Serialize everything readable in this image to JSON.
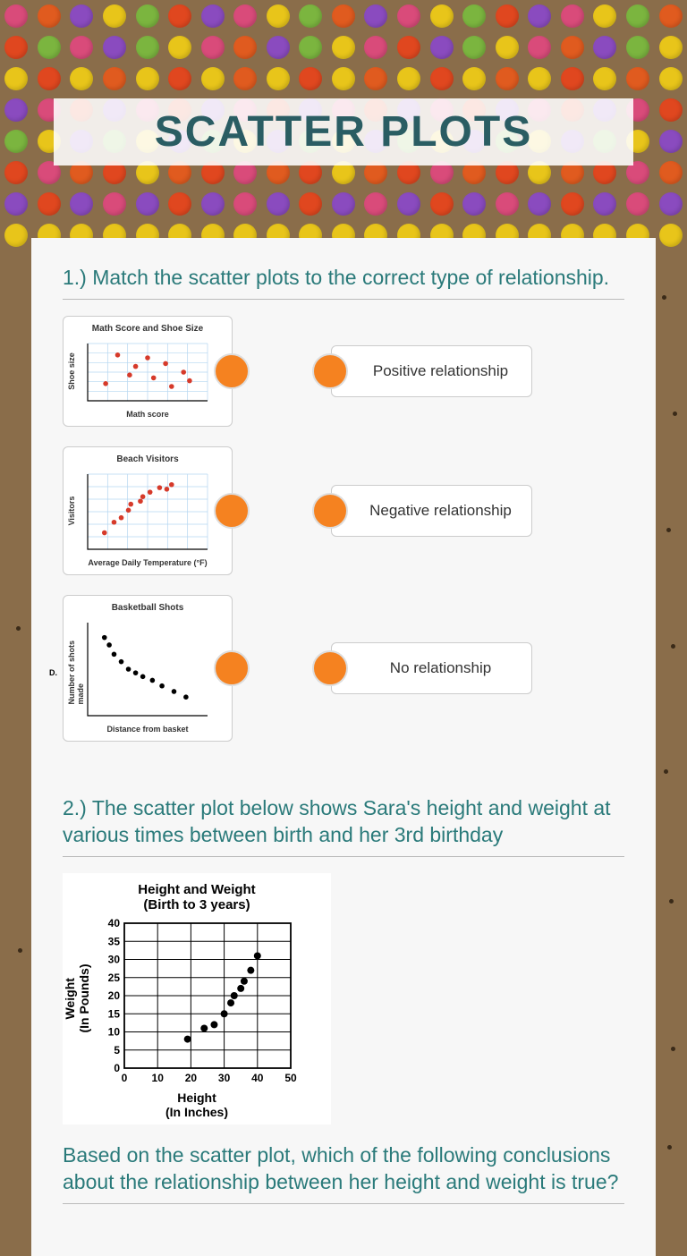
{
  "title": "SCATTER PLOTS",
  "bg_dot_rows": [
    [
      "#d94b7a",
      "#e05b1f",
      "#8a4bbf",
      "#e8c51a",
      "#7bb53f",
      "#e0471f",
      "#8a4bbf",
      "#d94b7a",
      "#e8c51a",
      "#7bb53f",
      "#e05b1f",
      "#8a4bbf",
      "#d94b7a",
      "#e8c51a",
      "#7bb53f",
      "#e0471f",
      "#8a4bbf",
      "#d94b7a",
      "#e8c51a",
      "#7bb53f",
      "#e05b1f"
    ],
    [
      "#e0471f",
      "#7bb53f",
      "#d94b7a",
      "#8a4bbf",
      "#7bb53f",
      "#e8c51a",
      "#d94b7a",
      "#e05b1f",
      "#8a4bbf",
      "#7bb53f",
      "#e8c51a",
      "#d94b7a",
      "#e0471f",
      "#8a4bbf",
      "#7bb53f",
      "#e8c51a",
      "#d94b7a",
      "#e05b1f",
      "#8a4bbf",
      "#7bb53f",
      "#e8c51a"
    ],
    [
      "#e8c51a",
      "#e0471f",
      "#e8c51a",
      "#e05b1f",
      "#e8c51a",
      "#e0471f",
      "#e8c51a",
      "#e05b1f",
      "#e8c51a",
      "#e0471f",
      "#e8c51a",
      "#e05b1f",
      "#e8c51a",
      "#e0471f",
      "#e8c51a",
      "#e05b1f",
      "#e8c51a",
      "#e0471f",
      "#e8c51a",
      "#e05b1f",
      "#e8c51a"
    ],
    [
      "#8a4bbf",
      "#d94b7a",
      "#e0471f",
      "#8a4bbf",
      "#d94b7a",
      "#e0471f",
      "#8a4bbf",
      "#d94b7a",
      "#e0471f",
      "#8a4bbf",
      "#d94b7a",
      "#e0471f",
      "#8a4bbf",
      "#d94b7a",
      "#e0471f",
      "#8a4bbf",
      "#d94b7a",
      "#e0471f",
      "#8a4bbf",
      "#d94b7a",
      "#e0471f"
    ],
    [
      "#7bb53f",
      "#e8c51a",
      "#8a4bbf",
      "#7bb53f",
      "#e8c51a",
      "#8a4bbf",
      "#7bb53f",
      "#e8c51a",
      "#8a4bbf",
      "#7bb53f",
      "#e8c51a",
      "#8a4bbf",
      "#7bb53f",
      "#e8c51a",
      "#8a4bbf",
      "#7bb53f",
      "#e8c51a",
      "#8a4bbf",
      "#7bb53f",
      "#e8c51a",
      "#8a4bbf"
    ],
    [
      "#e0471f",
      "#d94b7a",
      "#e05b1f",
      "#e0471f",
      "#e8c51a",
      "#e05b1f",
      "#e0471f",
      "#d94b7a",
      "#e05b1f",
      "#e0471f",
      "#e8c51a",
      "#e05b1f",
      "#e0471f",
      "#d94b7a",
      "#e05b1f",
      "#e0471f",
      "#e8c51a",
      "#e05b1f",
      "#e0471f",
      "#d94b7a",
      "#e05b1f"
    ],
    [
      "#8a4bbf",
      "#e0471f",
      "#8a4bbf",
      "#d94b7a",
      "#8a4bbf",
      "#e0471f",
      "#8a4bbf",
      "#d94b7a",
      "#8a4bbf",
      "#e0471f",
      "#8a4bbf",
      "#d94b7a",
      "#8a4bbf",
      "#e0471f",
      "#8a4bbf",
      "#d94b7a",
      "#8a4bbf",
      "#e0471f",
      "#8a4bbf",
      "#d94b7a",
      "#8a4bbf"
    ],
    [
      "#e8c51a",
      "#e8c51a",
      "#e8c51a",
      "#e8c51a",
      "#e8c51a",
      "#e8c51a",
      "#e8c51a",
      "#e8c51a",
      "#e8c51a",
      "#e8c51a",
      "#e8c51a",
      "#e8c51a",
      "#e8c51a",
      "#e8c51a",
      "#e8c51a",
      "#e8c51a",
      "#e8c51a",
      "#e8c51a",
      "#e8c51a",
      "#e8c51a",
      "#e8c51a"
    ]
  ],
  "q1": {
    "prompt": "1.) Match the scatter plots to the correct type of relationship.",
    "answers": [
      "Positive relationship",
      "Negative relationship",
      "No relationship"
    ],
    "plots": [
      {
        "title": "Math Score and Shoe Size",
        "xlabel": "Math score",
        "ylabel": "Shoe size",
        "point_color": "#d63a2a",
        "grid_color": "#b5d6f0",
        "points": [
          [
            15,
            70
          ],
          [
            25,
            20
          ],
          [
            35,
            55
          ],
          [
            40,
            40
          ],
          [
            50,
            25
          ],
          [
            55,
            60
          ],
          [
            65,
            35
          ],
          [
            70,
            75
          ],
          [
            80,
            50
          ],
          [
            85,
            65
          ]
        ]
      },
      {
        "title": "Beach Visitors",
        "xlabel": "Average Daily Temperature (°F)",
        "ylabel": "Visitors",
        "point_color": "#d63a2a",
        "grid_color": "#b5d6f0",
        "yticks": [
          "0",
          "75",
          "150",
          "225",
          "300",
          "375",
          "450",
          "525",
          "600"
        ],
        "xticks": [
          "",
          "80",
          "84",
          "88",
          "92",
          "96"
        ],
        "points": [
          [
            14,
            78
          ],
          [
            22,
            64
          ],
          [
            28,
            58
          ],
          [
            34,
            48
          ],
          [
            36,
            40
          ],
          [
            44,
            36
          ],
          [
            46,
            30
          ],
          [
            52,
            24
          ],
          [
            60,
            18
          ],
          [
            66,
            20
          ],
          [
            70,
            14
          ]
        ]
      },
      {
        "title": "Basketball Shots",
        "xlabel": "Distance from basket",
        "ylabel": "Number of shots made",
        "point_color": "#000000",
        "grid_color": "#ffffff",
        "side_label": "D.",
        "points": [
          [
            14,
            16
          ],
          [
            18,
            24
          ],
          [
            22,
            34
          ],
          [
            28,
            42
          ],
          [
            34,
            50
          ],
          [
            40,
            54
          ],
          [
            46,
            58
          ],
          [
            54,
            62
          ],
          [
            62,
            68
          ],
          [
            72,
            74
          ],
          [
            82,
            80
          ]
        ]
      }
    ]
  },
  "q2": {
    "prompt": "2.) The scatter plot below shows Sara's height and weight at various times between birth and her 3rd birthday",
    "chart": {
      "title_line1": "Height and Weight",
      "title_line2": "(Birth to 3 years)",
      "xlabel_line1": "Height",
      "xlabel_line2": "(In Inches)",
      "ylabel_line1": "Weight",
      "ylabel_line2": "(In Pounds)",
      "xlim": [
        0,
        50
      ],
      "ylim": [
        0,
        40
      ],
      "xticks": [
        0,
        10,
        20,
        30,
        40,
        50
      ],
      "yticks": [
        0,
        5,
        10,
        15,
        20,
        25,
        30,
        35,
        40
      ],
      "point_color": "#000000",
      "grid_color": "#000000",
      "points": [
        [
          19,
          8
        ],
        [
          24,
          11
        ],
        [
          27,
          12
        ],
        [
          30,
          15
        ],
        [
          32,
          18
        ],
        [
          33,
          20
        ],
        [
          35,
          22
        ],
        [
          36,
          24
        ],
        [
          38,
          27
        ],
        [
          40,
          31
        ]
      ]
    },
    "followup": "Based on the scatter plot, which of the following conclusions about the relationship between her height and weight is true?"
  },
  "accent_color": "#f58220",
  "heading_color": "#2a7a7a"
}
